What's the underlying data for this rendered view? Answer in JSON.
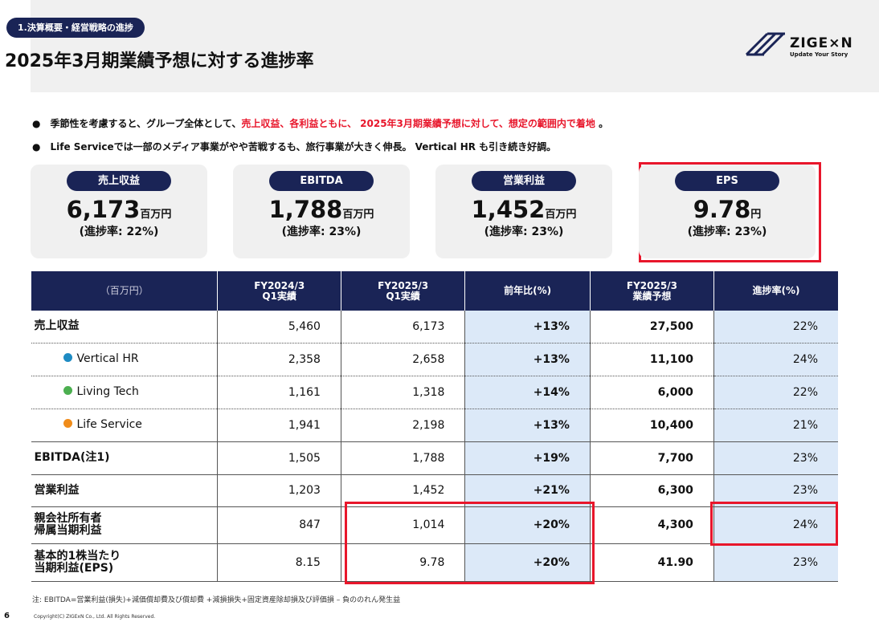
{
  "header": {
    "section": "1.決算概要・経営戦略の進捗",
    "title": "2025年3月期業績予想に対する進捗率",
    "logo": {
      "name": "ZIGE×N",
      "tagline": "Update Your Story"
    }
  },
  "bullets": [
    [
      {
        "text": "季節性を考慮すると、グループ全体として、",
        "emphasis": false
      },
      {
        "text": "売上収益、各利益ともに、 2025年3月期業績予想に対して、想定の範囲内で着地",
        "emphasis": true
      },
      {
        "text": " 。",
        "emphasis": false
      }
    ],
    [
      {
        "text": "Life Serviceでは一部のメディア事業がやや苦戦するも、旅行事業が大きく伸長。 Vertical HR も引き続き好調。",
        "emphasis": false
      }
    ]
  ],
  "kpis": [
    {
      "label": "売上収益",
      "value": "6,173",
      "unit": "百万円",
      "progress": "(進捗率: 22%)"
    },
    {
      "label": "EBITDA",
      "value": "1,788",
      "unit": "百万円",
      "progress": "(進捗率: 23%)"
    },
    {
      "label": "営業利益",
      "value": "1,452",
      "unit": "百万円",
      "progress": "(進捗率: 23%)"
    },
    {
      "label": "EPS",
      "value": "9.78",
      "unit": "円",
      "progress": "(進捗率: 23%)"
    }
  ],
  "table": {
    "header": [
      "（百万円）",
      "FY2024/3\nQ1実績",
      "FY2025/3\nQ1実績",
      "前年比(%)",
      "FY2025/3\n業績予想",
      "進捗率(%)"
    ],
    "rows": [
      {
        "label": "売上収益",
        "values": [
          "5,460",
          "6,173",
          "+13%",
          "27,500",
          "22%"
        ]
      },
      {
        "label": "Vertical HR",
        "dot": "#1e8bc3",
        "values": [
          "2,358",
          "2,658",
          "+13%",
          "11,100",
          "24%"
        ]
      },
      {
        "label": "Living Tech",
        "dot": "#4caf50",
        "values": [
          "1,161",
          "1,318",
          "+14%",
          "6,000",
          "22%"
        ]
      },
      {
        "label": "Life Service",
        "dot": "#f08c1a",
        "values": [
          "1,941",
          "2,198",
          "+13%",
          "10,400",
          "21%"
        ]
      },
      {
        "label": "EBITDA(注1)",
        "values": [
          "1,505",
          "1,788",
          "+19%",
          "7,700",
          "23%"
        ]
      },
      {
        "label": "営業利益",
        "values": [
          "1,203",
          "1,452",
          "+21%",
          "6,300",
          "23%"
        ]
      },
      {
        "label": "親会社所有者\n帰属当期利益",
        "values": [
          "847",
          "1,014",
          "+20%",
          "4,300",
          "24%"
        ]
      },
      {
        "label": "基本的1株当たり\n当期利益(EPS)",
        "values": [
          "8.15",
          "9.78",
          "+20%",
          "41.90",
          "23%"
        ]
      }
    ]
  },
  "note": "注: EBITDA=営業利益(損失)+減価償却費及び償却費 +減損損失+固定資産除却損及び評価損 – 負ののれん発生益",
  "page_number": "6",
  "copyright": "Copyright(C) ZIGExN Co., Ltd. All Rights Reserved."
}
